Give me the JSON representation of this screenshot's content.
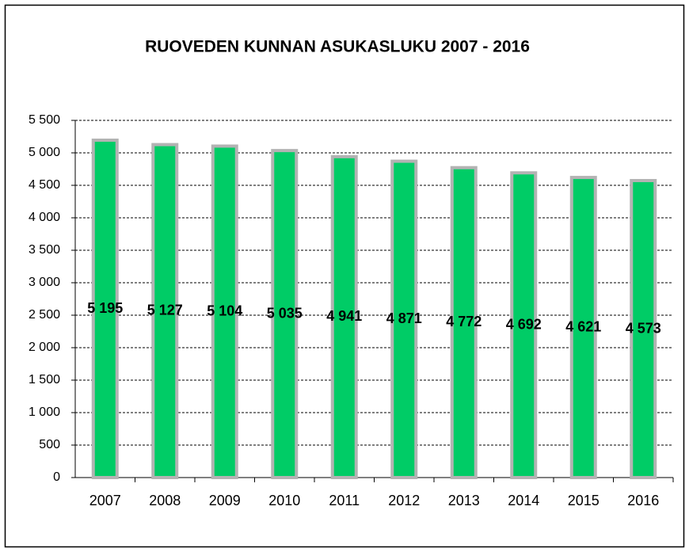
{
  "chart_data": {
    "type": "bar",
    "title": "RUOVEDEN  KUNNAN  ASUKASLUKU  2007  - 2016",
    "categories": [
      "2007",
      "2008",
      "2009",
      "2010",
      "2011",
      "2012",
      "2013",
      "2014",
      "2015",
      "2016"
    ],
    "values": [
      5195,
      5127,
      5104,
      5035,
      4941,
      4871,
      4772,
      4692,
      4621,
      4573
    ],
    "value_labels": [
      "5 195",
      "5 127",
      "5 104",
      "5 035",
      "4 941",
      "4 871",
      "4 772",
      "4 692",
      "4 621",
      "4 573"
    ],
    "color": "#00cc66",
    "edge_color": "#b3b3b3",
    "ylim": [
      0,
      5500
    ],
    "yticks": [
      0,
      500,
      {
        "value": 1000,
        "label": "1 000"
      },
      {
        "value": 1500,
        "label": "1 500"
      },
      {
        "value": 2000,
        "label": "2 000"
      },
      {
        "value": 2500,
        "label": "2 500"
      },
      {
        "value": 3000,
        "label": "3 000"
      },
      {
        "value": 3500,
        "label": "3 500"
      },
      {
        "value": 4000,
        "label": "4 000"
      },
      {
        "value": 4500,
        "label": "4 500"
      },
      {
        "value": 5000,
        "label": "5 000"
      },
      {
        "value": 5500,
        "label": "5 500"
      }
    ],
    "grid": true
  }
}
